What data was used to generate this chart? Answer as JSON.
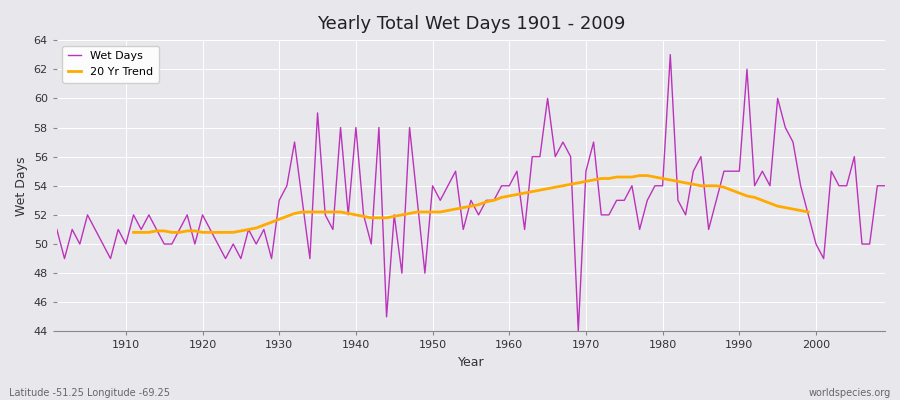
{
  "title": "Yearly Total Wet Days 1901 - 2009",
  "ylabel": "Wet Days",
  "xlabel": "Year",
  "footnote_left": "Latitude -51.25 Longitude -69.25",
  "footnote_right": "worldspecies.org",
  "legend_wet": "Wet Days",
  "legend_trend": "20 Yr Trend",
  "wet_color": "#bb33bb",
  "trend_color": "#ffaa00",
  "bg_color": "#e8e8ec",
  "grid_color": "#ffffff",
  "ylim": [
    44,
    64
  ],
  "xlim": [
    1901,
    2009
  ],
  "yticks": [
    44,
    46,
    48,
    50,
    52,
    54,
    56,
    58,
    60,
    62,
    64
  ],
  "xticks": [
    1910,
    1920,
    1930,
    1940,
    1950,
    1960,
    1970,
    1980,
    1990,
    2000
  ],
  "years": [
    1901,
    1902,
    1903,
    1904,
    1905,
    1906,
    1907,
    1908,
    1909,
    1910,
    1911,
    1912,
    1913,
    1914,
    1915,
    1916,
    1917,
    1918,
    1919,
    1920,
    1921,
    1922,
    1923,
    1924,
    1925,
    1926,
    1927,
    1928,
    1929,
    1930,
    1931,
    1932,
    1933,
    1934,
    1935,
    1936,
    1937,
    1938,
    1939,
    1940,
    1941,
    1942,
    1943,
    1944,
    1945,
    1946,
    1947,
    1948,
    1949,
    1950,
    1951,
    1952,
    1953,
    1954,
    1955,
    1956,
    1957,
    1958,
    1959,
    1960,
    1961,
    1962,
    1963,
    1964,
    1965,
    1966,
    1967,
    1968,
    1969,
    1970,
    1971,
    1972,
    1973,
    1974,
    1975,
    1976,
    1977,
    1978,
    1979,
    1980,
    1981,
    1982,
    1983,
    1984,
    1985,
    1986,
    1987,
    1988,
    1989,
    1990,
    1991,
    1992,
    1993,
    1994,
    1995,
    1996,
    1997,
    1998,
    1999,
    2000,
    2001,
    2002,
    2003,
    2004,
    2005,
    2006,
    2007,
    2008,
    2009
  ],
  "wet_days": [
    51,
    49,
    51,
    50,
    52,
    51,
    50,
    49,
    51,
    50,
    52,
    51,
    52,
    51,
    50,
    50,
    51,
    52,
    50,
    52,
    51,
    50,
    49,
    50,
    49,
    51,
    50,
    51,
    49,
    53,
    54,
    57,
    53,
    49,
    59,
    52,
    51,
    58,
    52,
    58,
    52,
    50,
    58,
    45,
    52,
    48,
    58,
    53,
    48,
    54,
    53,
    54,
    55,
    51,
    53,
    52,
    53,
    53,
    54,
    54,
    55,
    51,
    56,
    56,
    60,
    56,
    57,
    56,
    44,
    55,
    57,
    52,
    52,
    53,
    53,
    54,
    51,
    53,
    54,
    54,
    63,
    53,
    52,
    55,
    56,
    51,
    53,
    55,
    55,
    55,
    62,
    54,
    55,
    54,
    60,
    58,
    57,
    54,
    52,
    50,
    49,
    55,
    54,
    54,
    56,
    50,
    50,
    54,
    54
  ],
  "trend_years": [
    1911,
    1912,
    1913,
    1914,
    1915,
    1916,
    1917,
    1918,
    1919,
    1920,
    1921,
    1922,
    1923,
    1924,
    1925,
    1926,
    1927,
    1928,
    1929,
    1930,
    1931,
    1932,
    1933,
    1934,
    1935,
    1936,
    1937,
    1938,
    1939,
    1940,
    1941,
    1942,
    1943,
    1944,
    1945,
    1946,
    1947,
    1948,
    1949,
    1950,
    1951,
    1952,
    1953,
    1954,
    1955,
    1956,
    1957,
    1958,
    1959,
    1960,
    1961,
    1962,
    1963,
    1964,
    1965,
    1966,
    1967,
    1968,
    1969,
    1970,
    1971,
    1972,
    1973,
    1974,
    1975,
    1976,
    1977,
    1978,
    1979,
    1980,
    1981,
    1982,
    1983,
    1984,
    1985,
    1986,
    1987,
    1988,
    1989,
    1990,
    1991,
    1992,
    1993,
    1994,
    1995,
    1996,
    1997,
    1998,
    1999
  ],
  "trend_vals": [
    50.8,
    50.8,
    50.8,
    50.9,
    50.9,
    50.8,
    50.8,
    50.9,
    50.9,
    50.8,
    50.8,
    50.8,
    50.8,
    50.8,
    50.9,
    51.0,
    51.1,
    51.3,
    51.5,
    51.7,
    51.9,
    52.1,
    52.2,
    52.2,
    52.2,
    52.2,
    52.2,
    52.2,
    52.1,
    52.0,
    51.9,
    51.8,
    51.8,
    51.8,
    51.9,
    52.0,
    52.1,
    52.2,
    52.2,
    52.2,
    52.2,
    52.3,
    52.4,
    52.5,
    52.6,
    52.7,
    52.9,
    53.0,
    53.2,
    53.3,
    53.4,
    53.5,
    53.6,
    53.7,
    53.8,
    53.9,
    54.0,
    54.1,
    54.2,
    54.3,
    54.4,
    54.5,
    54.5,
    54.6,
    54.6,
    54.6,
    54.7,
    54.7,
    54.6,
    54.5,
    54.4,
    54.3,
    54.2,
    54.1,
    54.0,
    54.0,
    54.0,
    53.9,
    53.7,
    53.5,
    53.3,
    53.2,
    53.0,
    52.8,
    52.6,
    52.5,
    52.4,
    52.3,
    52.2
  ]
}
